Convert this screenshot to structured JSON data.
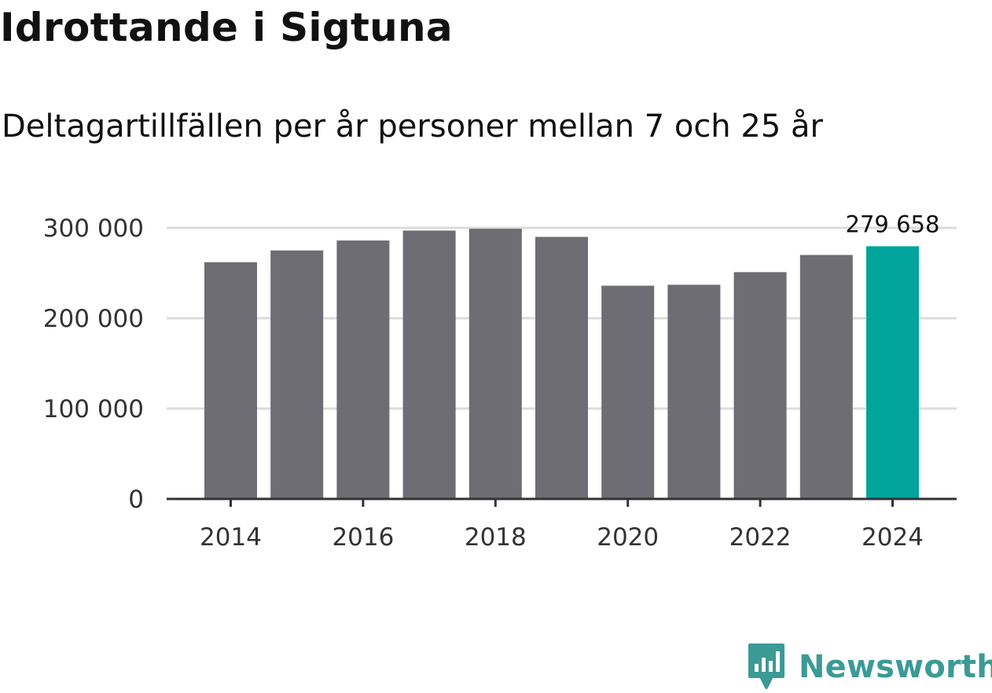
{
  "title": "Idrottande i Sigtuna",
  "subtitle": "Deltagartillfällen per år personer mellan 7 och 25 år",
  "brand": {
    "name": "Newsworthy",
    "icon": "newsworthy-logo-icon",
    "color": "#3c9a96"
  },
  "colors": {
    "bar": "#6e6d73",
    "highlight": "#00a49b",
    "grid": "#dcdcdc",
    "axis": "#333333"
  },
  "chart_data": {
    "type": "bar",
    "categories": [
      2014,
      2015,
      2016,
      2017,
      2018,
      2019,
      2020,
      2021,
      2022,
      2023,
      2024
    ],
    "values": [
      262000,
      275000,
      286000,
      297000,
      299000,
      290000,
      236000,
      237000,
      251000,
      270000,
      279658
    ],
    "highlight_index": 10,
    "data_labels": [
      {
        "index": 10,
        "text": "279 658"
      }
    ],
    "yticks": [
      0,
      100000,
      200000,
      300000
    ],
    "ytick_labels": [
      "0",
      "100 000",
      "200 000",
      "300 000"
    ],
    "xticks": [
      2014,
      2016,
      2018,
      2020,
      2022,
      2024
    ],
    "xtick_labels": [
      "2014",
      "2016",
      "2018",
      "2020",
      "2022",
      "2024"
    ],
    "ylim": [
      0,
      300000
    ],
    "grid": true,
    "legend": false
  }
}
